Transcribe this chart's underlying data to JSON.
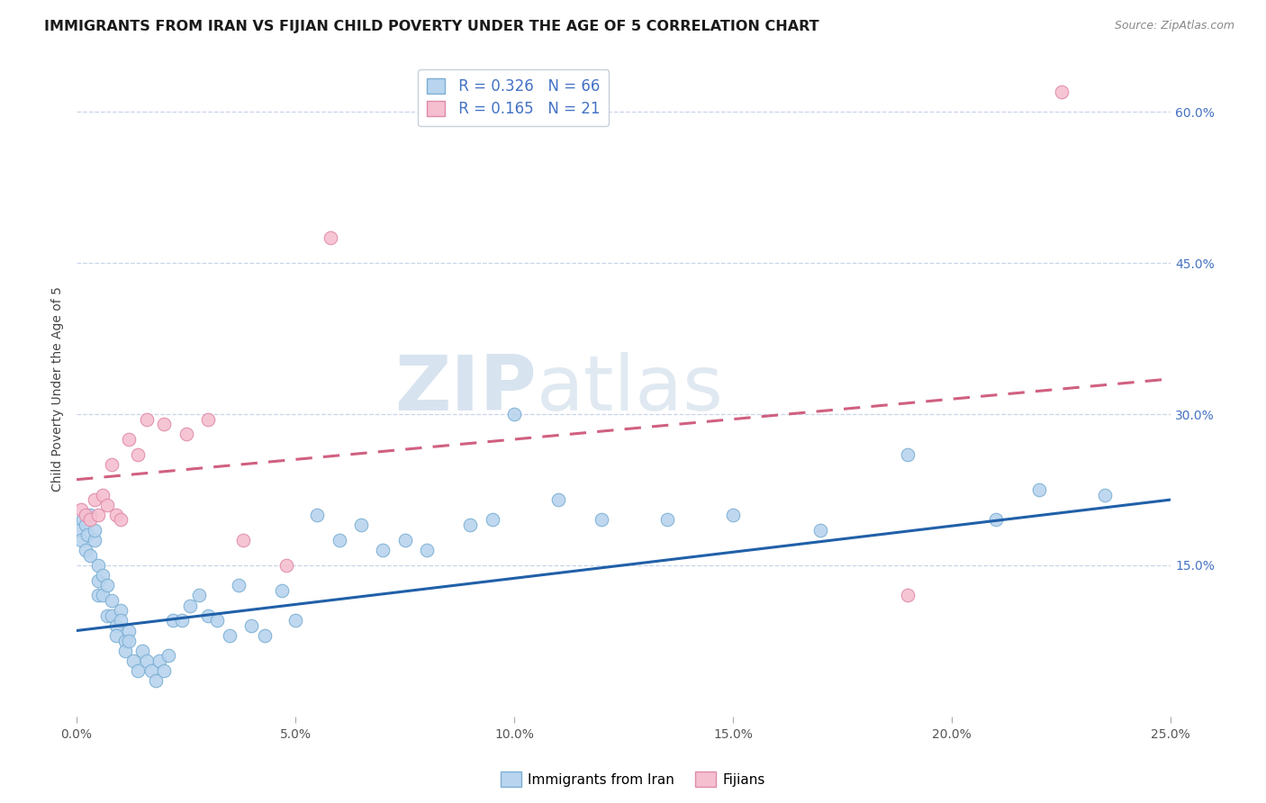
{
  "title": "IMMIGRANTS FROM IRAN VS FIJIAN CHILD POVERTY UNDER THE AGE OF 5 CORRELATION CHART",
  "source": "Source: ZipAtlas.com",
  "ylabel": "Child Poverty Under the Age of 5",
  "x_min": 0.0,
  "x_max": 0.25,
  "y_min": 0.0,
  "y_max": 0.65,
  "x_ticks": [
    0.0,
    0.05,
    0.1,
    0.15,
    0.2,
    0.25
  ],
  "x_tick_labels": [
    "0.0%",
    "5.0%",
    "10.0%",
    "15.0%",
    "20.0%",
    "25.0%"
  ],
  "y_ticks_right": [
    0.15,
    0.3,
    0.45,
    0.6
  ],
  "y_tick_labels_right": [
    "15.0%",
    "30.0%",
    "45.0%",
    "60.0%"
  ],
  "iran_color": "#b8d4ee",
  "iran_edge_color": "#7bafd4",
  "fijian_color": "#f5bfcf",
  "fijian_edge_color": "#e08aaa",
  "iran_line_color": "#2060a8",
  "fijian_line_color": "#d06080",
  "background_color": "#ffffff",
  "grid_color": "#c8d4e8",
  "title_fontsize": 11.5,
  "axis_label_fontsize": 10,
  "tick_fontsize": 10,
  "watermark": "ZIPatlas",
  "iran_x": [
    0.0005,
    0.001,
    0.0015,
    0.002,
    0.002,
    0.0025,
    0.003,
    0.003,
    0.004,
    0.004,
    0.005,
    0.005,
    0.005,
    0.006,
    0.006,
    0.007,
    0.007,
    0.008,
    0.008,
    0.009,
    0.009,
    0.01,
    0.01,
    0.011,
    0.011,
    0.012,
    0.012,
    0.013,
    0.014,
    0.015,
    0.016,
    0.017,
    0.018,
    0.019,
    0.02,
    0.021,
    0.022,
    0.024,
    0.026,
    0.028,
    0.03,
    0.032,
    0.035,
    0.037,
    0.04,
    0.043,
    0.047,
    0.05,
    0.055,
    0.06,
    0.065,
    0.07,
    0.075,
    0.08,
    0.09,
    0.095,
    0.1,
    0.11,
    0.12,
    0.135,
    0.15,
    0.17,
    0.19,
    0.21,
    0.22,
    0.235
  ],
  "iran_y": [
    0.185,
    0.175,
    0.195,
    0.165,
    0.19,
    0.18,
    0.16,
    0.2,
    0.175,
    0.185,
    0.12,
    0.135,
    0.15,
    0.14,
    0.12,
    0.1,
    0.13,
    0.115,
    0.1,
    0.09,
    0.08,
    0.105,
    0.095,
    0.075,
    0.065,
    0.085,
    0.075,
    0.055,
    0.045,
    0.065,
    0.055,
    0.045,
    0.035,
    0.055,
    0.045,
    0.06,
    0.095,
    0.095,
    0.11,
    0.12,
    0.1,
    0.095,
    0.08,
    0.13,
    0.09,
    0.08,
    0.125,
    0.095,
    0.2,
    0.175,
    0.19,
    0.165,
    0.175,
    0.165,
    0.19,
    0.195,
    0.3,
    0.215,
    0.195,
    0.195,
    0.2,
    0.185,
    0.26,
    0.195,
    0.225,
    0.22
  ],
  "fijian_x": [
    0.001,
    0.002,
    0.003,
    0.004,
    0.005,
    0.006,
    0.007,
    0.008,
    0.009,
    0.01,
    0.012,
    0.014,
    0.016,
    0.02,
    0.025,
    0.03,
    0.038,
    0.048,
    0.058,
    0.19,
    0.225
  ],
  "fijian_y": [
    0.205,
    0.2,
    0.195,
    0.215,
    0.2,
    0.22,
    0.21,
    0.25,
    0.2,
    0.195,
    0.275,
    0.26,
    0.295,
    0.29,
    0.28,
    0.295,
    0.175,
    0.15,
    0.475,
    0.12,
    0.62
  ],
  "iran_trend_x": [
    0.0,
    0.25
  ],
  "iran_trend_y": [
    0.085,
    0.215
  ],
  "fijian_trend_x": [
    0.0,
    0.25
  ],
  "fijian_trend_y": [
    0.235,
    0.335
  ]
}
